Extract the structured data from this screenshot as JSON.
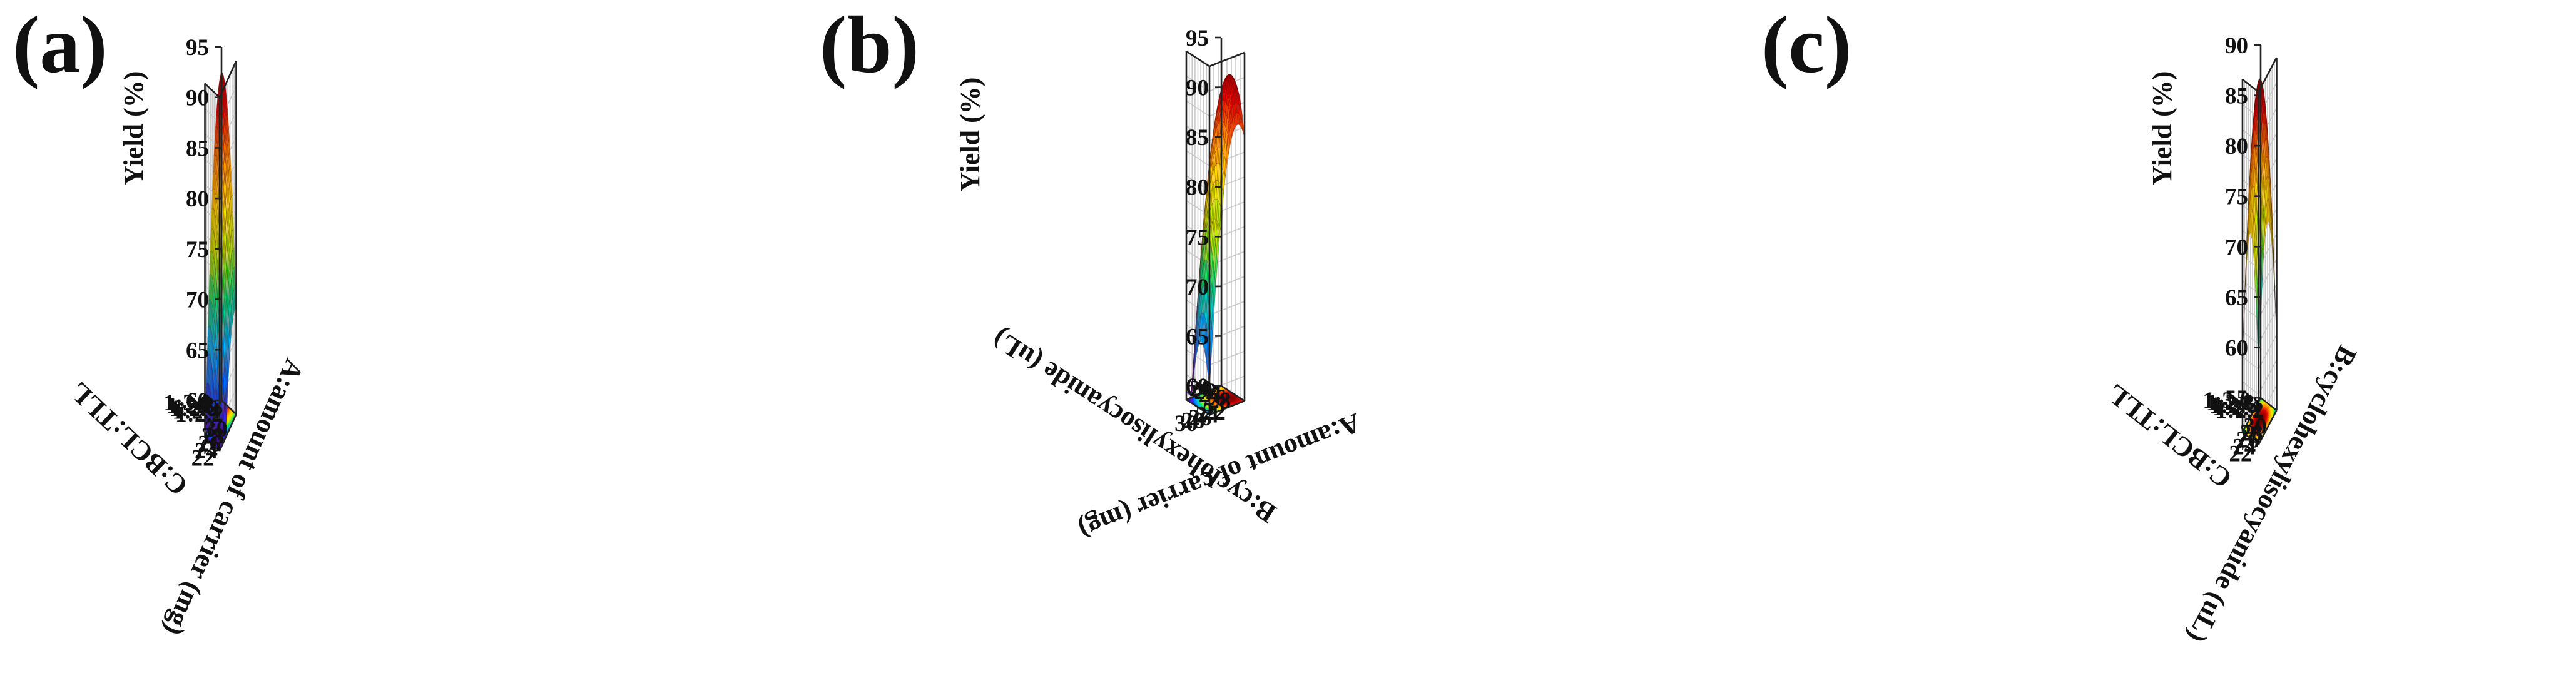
{
  "chart_data": [
    {
      "type": "surface",
      "panel_label": "(a)",
      "zlabel": "Yield (%)",
      "z_ticks": [
        60,
        65,
        70,
        75,
        80,
        85,
        90,
        95
      ],
      "zlim": [
        60,
        95
      ],
      "x_axis": {
        "label": "A:amount of carrier (mg)",
        "ticks": [
          "30",
          "28",
          "26",
          "24",
          "22"
        ],
        "range": [
          20,
          30
        ]
      },
      "y_axis": {
        "label": "C:BCL:TLL",
        "ticks": [
          "1:3.0",
          "1:2.8",
          "1:2.6",
          "1:2.4",
          "1:2.2"
        ],
        "range": [
          "1:3.0",
          "1:2.0"
        ]
      },
      "contour_floor": true,
      "colormap": [
        "#5a00d6",
        "#0055ff",
        "#00b4ff",
        "#00e07a",
        "#b8f000",
        "#ffe000",
        "#ff8a00",
        "#e00000",
        "#6a0000"
      ]
    },
    {
      "type": "surface",
      "panel_label": "(b)",
      "zlabel": "Yield (%)",
      "z_ticks": [
        60,
        65,
        70,
        75,
        80,
        85,
        90,
        95
      ],
      "zlim": [
        60,
        95
      ],
      "x_axis": {
        "label": "A:amount of carrier (mg)",
        "ticks": [
          "22",
          "24",
          "26",
          "28",
          "30"
        ],
        "range": [
          20,
          30
        ]
      },
      "y_axis": {
        "label": "B:cyclohexylisocyanide (uL)",
        "ticks": [
          "20",
          "22",
          "24",
          "26",
          "28"
        ],
        "range": [
          20,
          30
        ]
      },
      "contour_floor": true,
      "colormap": [
        "#5a00d6",
        "#0055ff",
        "#00b4ff",
        "#00e07a",
        "#b8f000",
        "#ffe000",
        "#ff8a00",
        "#e00000",
        "#6a0000"
      ]
    },
    {
      "type": "surface",
      "panel_label": "(c)",
      "zlabel": "Yield (%)",
      "z_ticks": [
        55,
        60,
        65,
        70,
        75,
        80,
        85,
        90
      ],
      "zlim": [
        55,
        90
      ],
      "x_axis": {
        "label": "B:cyclohexylisocyanide (uL)",
        "ticks": [
          "30",
          "28",
          "26",
          "24",
          "22"
        ],
        "range": [
          20,
          30
        ]
      },
      "y_axis": {
        "label": "C:BCL:TLL",
        "ticks": [
          "1:3.0",
          "1:2.8",
          "1:2.6",
          "1:2.4",
          "1:2.2"
        ],
        "range": [
          "1:3.0",
          "1:2.0"
        ]
      },
      "contour_floor": true,
      "colormap": [
        "#5a00d6",
        "#0055ff",
        "#00b4ff",
        "#00e07a",
        "#b8f000",
        "#ffe000",
        "#ff8a00",
        "#e00000",
        "#6a0000"
      ]
    }
  ]
}
